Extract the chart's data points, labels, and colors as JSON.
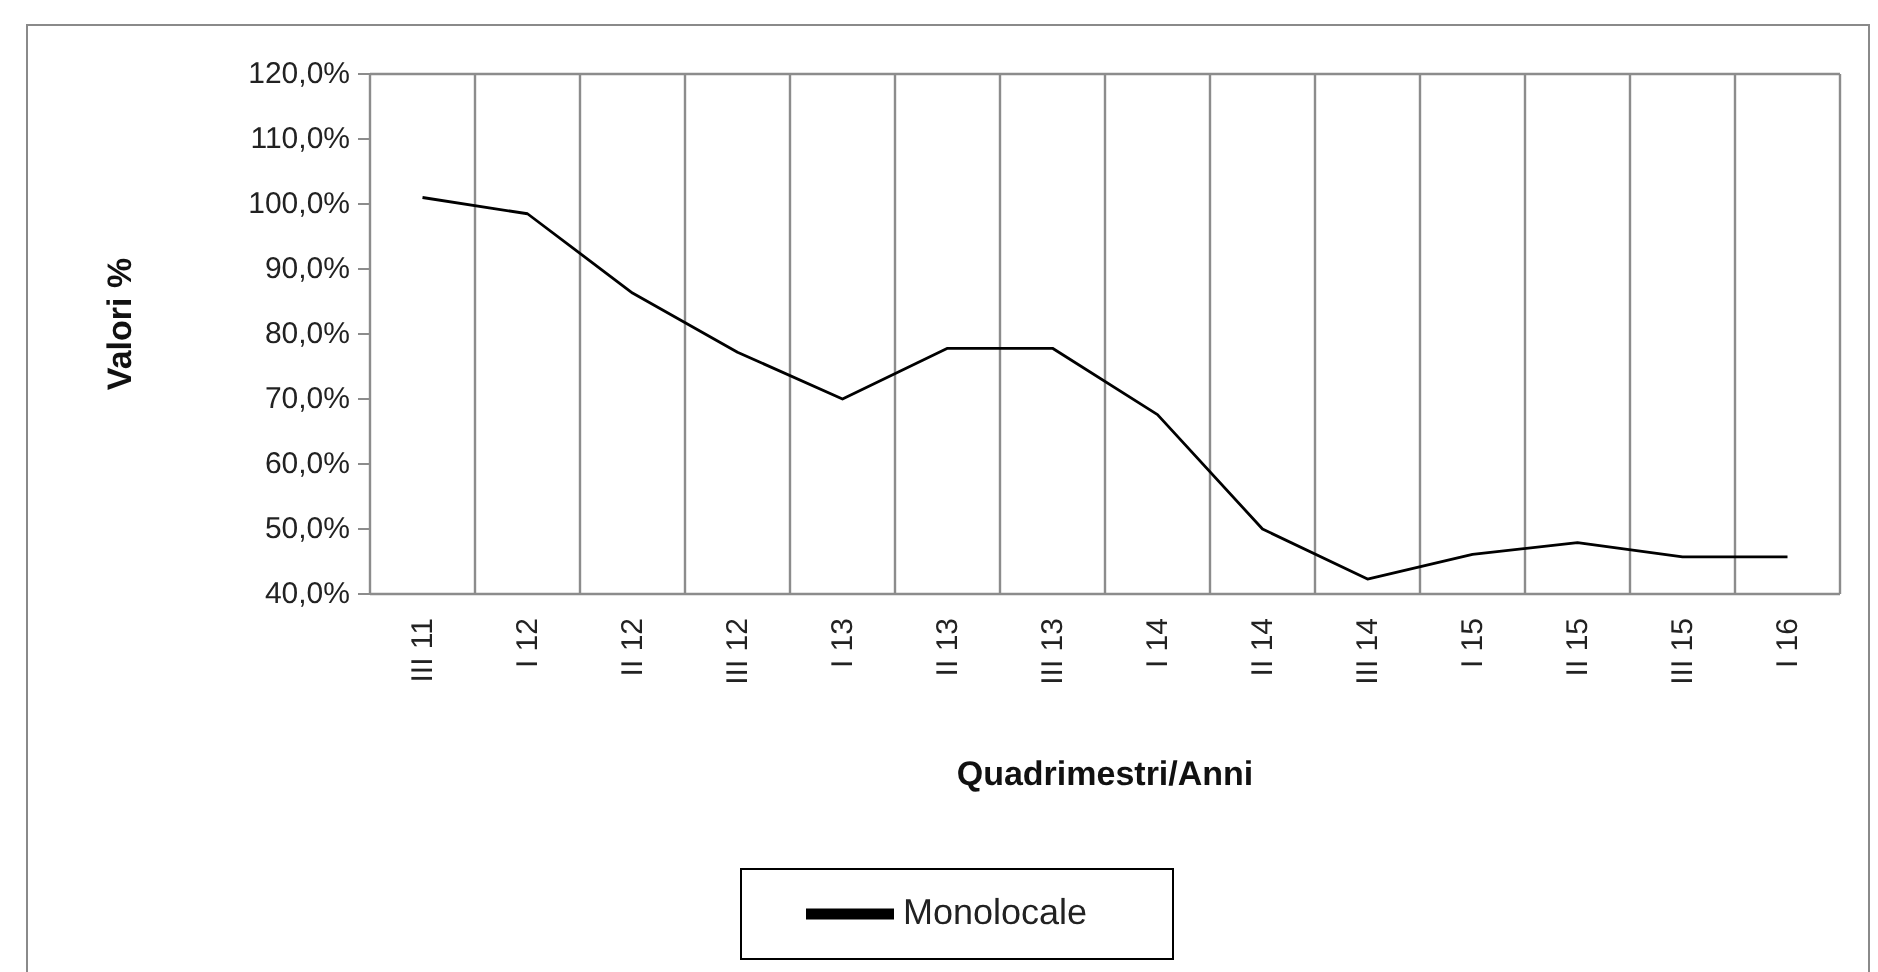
{
  "chart_data": {
    "type": "line",
    "xlabel": "Quadrimestri/Anni",
    "ylabel": "Valori %",
    "categories": [
      "III 11",
      "I 12",
      "II 12",
      "III 12",
      "I 13",
      "II 13",
      "III 13",
      "I 14",
      "II 14",
      "III 14",
      "I 15",
      "II 15",
      "III 15",
      "I 16"
    ],
    "series": [
      {
        "name": "Monolocale",
        "color": "#000000",
        "values": [
          101,
          98.5,
          86.3,
          77.2,
          70,
          77.8,
          77.8,
          67.6,
          50,
          42.3,
          46.1,
          47.9,
          45.7,
          45.7
        ]
      }
    ],
    "ylim": [
      40,
      120
    ],
    "yticks": [
      {
        "value": 40,
        "label": "40,0%"
      },
      {
        "value": 50,
        "label": "50,0%"
      },
      {
        "value": 60,
        "label": "60,0%"
      },
      {
        "value": 70,
        "label": "70,0%"
      },
      {
        "value": 80,
        "label": "80,0%"
      },
      {
        "value": 90,
        "label": "90,0%"
      },
      {
        "value": 100,
        "label": "100,0%"
      },
      {
        "value": 110,
        "label": "110,0%"
      },
      {
        "value": 120,
        "label": "120,0%"
      }
    ],
    "grid": true,
    "legend": "bottom",
    "marker": "none",
    "line_style": "solid"
  }
}
